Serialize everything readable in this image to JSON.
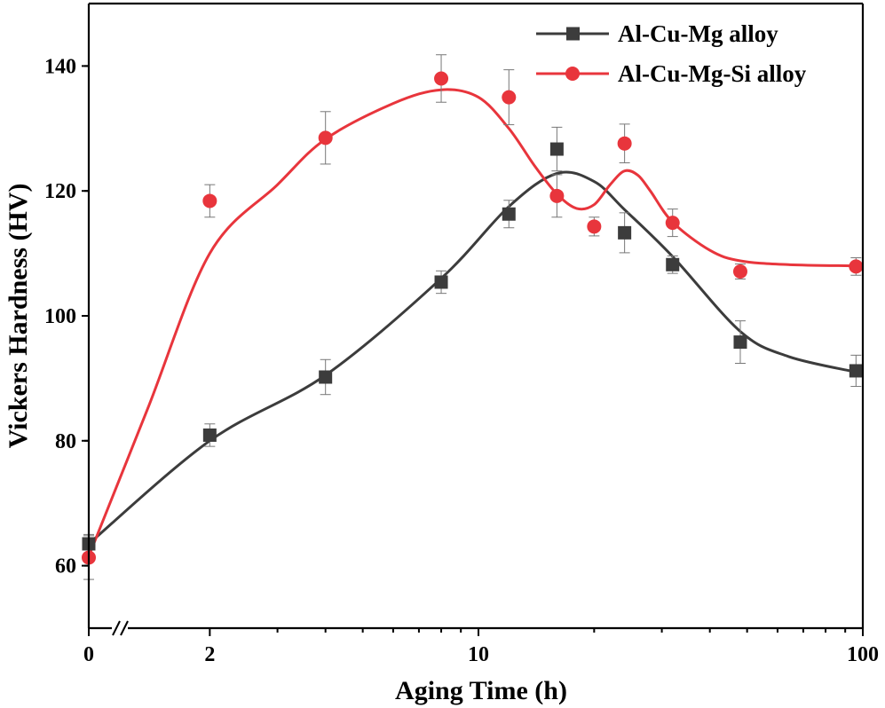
{
  "chart_data": {
    "type": "line",
    "title": "",
    "xlabel": "Aging Time (h)",
    "ylabel": "Vickers Hardness (HV)",
    "x_scale": "log with axis break (0 then 2–100)",
    "xlim": [
      1,
      100
    ],
    "ylim": [
      50,
      150
    ],
    "x_ticks": [
      "0",
      "2",
      "10",
      "100"
    ],
    "y_ticks": [
      60,
      80,
      100,
      120,
      140
    ],
    "grid": false,
    "legend_position": "top-right",
    "series": [
      {
        "name": "Al-Cu-Mg alloy",
        "color": "#3c3c3c",
        "marker": "square",
        "x": [
          0,
          2,
          4,
          8,
          12,
          16,
          24,
          32,
          48,
          96
        ],
        "y": [
          63.5,
          80.9,
          90.2,
          105.4,
          116.3,
          126.7,
          113.3,
          108.2,
          95.8,
          91.2
        ],
        "err": [
          1.5,
          1.8,
          2.8,
          1.8,
          2.2,
          3.5,
          3.2,
          1.4,
          3.4,
          2.5
        ],
        "fit": [
          [
            0,
            63.5
          ],
          [
            2,
            80
          ],
          [
            4,
            90.5
          ],
          [
            8,
            106
          ],
          [
            12,
            117.5
          ],
          [
            16,
            122.8
          ],
          [
            20,
            121.5
          ],
          [
            24,
            117
          ],
          [
            32,
            109.5
          ],
          [
            48,
            97.5
          ],
          [
            64,
            93.5
          ],
          [
            96,
            91
          ]
        ]
      },
      {
        "name": "Al-Cu-Mg-Si alloy",
        "color": "#e8353c",
        "marker": "circle",
        "x": [
          0,
          2,
          4,
          8,
          12,
          16,
          20,
          24,
          32,
          48,
          96
        ],
        "y": [
          61.3,
          118.4,
          128.5,
          138.0,
          135.0,
          119.2,
          114.3,
          127.6,
          114.9,
          107.1,
          107.9
        ],
        "err": [
          3.5,
          2.6,
          4.2,
          3.8,
          4.4,
          3.4,
          1.5,
          3.1,
          2.2,
          1.2,
          1.4
        ],
        "fit": [
          [
            0,
            61.5
          ],
          [
            1,
            85
          ],
          [
            2,
            110
          ],
          [
            3,
            121
          ],
          [
            4,
            128.3
          ],
          [
            6,
            134
          ],
          [
            8,
            136.2
          ],
          [
            10,
            135
          ],
          [
            12,
            130
          ],
          [
            14,
            124
          ],
          [
            16,
            119.5
          ],
          [
            18,
            117.2
          ],
          [
            20,
            117.8
          ],
          [
            22,
            121
          ],
          [
            24,
            123.2
          ],
          [
            26,
            122.5
          ],
          [
            28,
            120
          ],
          [
            32,
            115
          ],
          [
            40,
            110.5
          ],
          [
            48,
            108.8
          ],
          [
            64,
            108.2
          ],
          [
            96,
            108
          ]
        ]
      }
    ]
  }
}
